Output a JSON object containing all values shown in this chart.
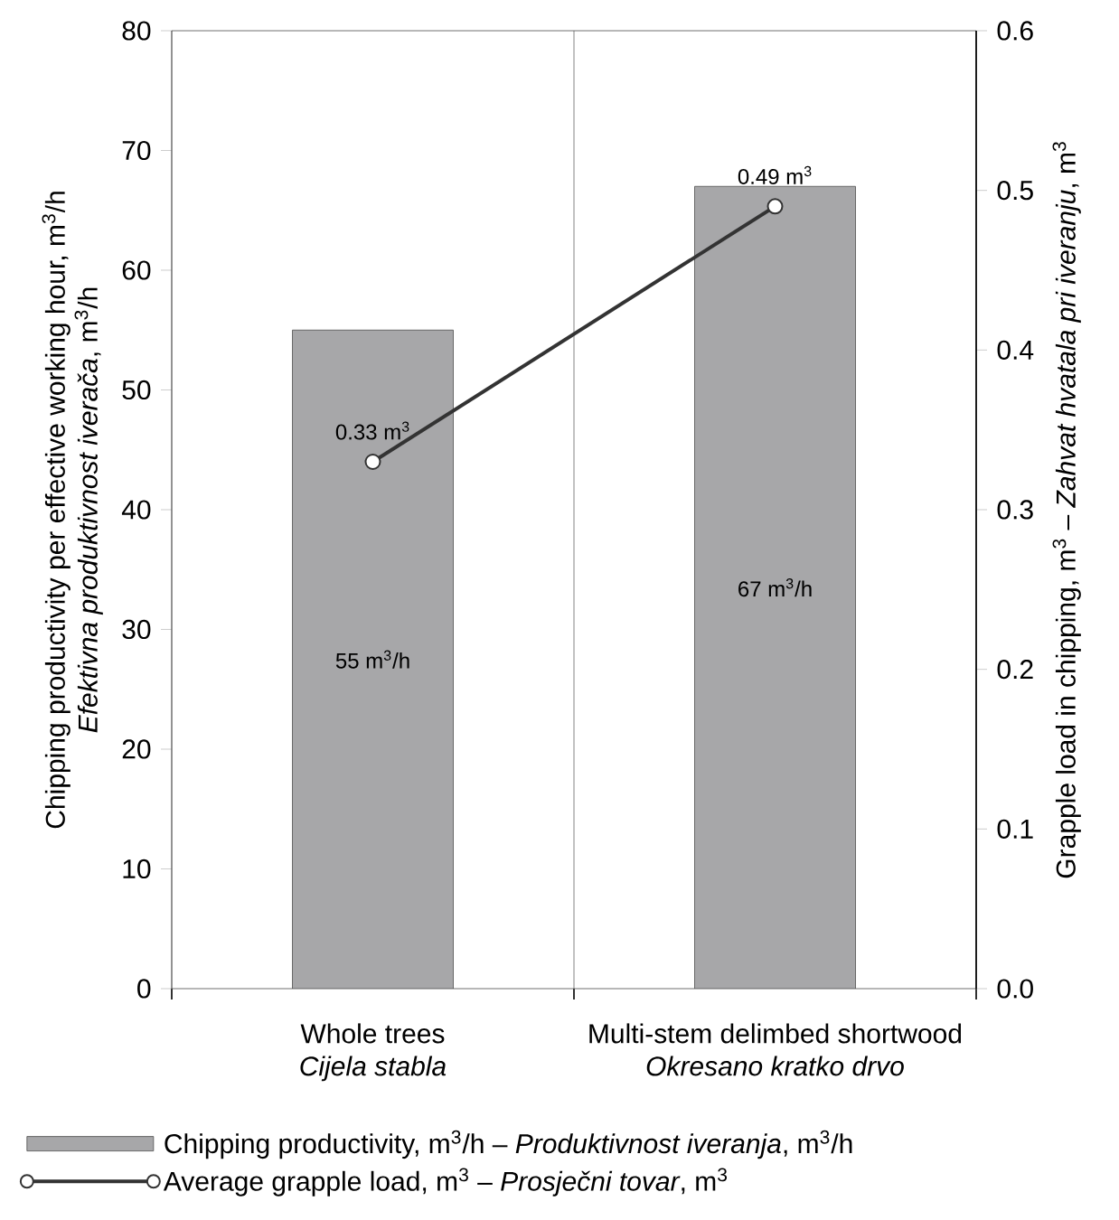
{
  "chart_data": {
    "type": "bar",
    "categories": [
      "Whole trees\n*Cijela stabla*",
      "Multi-stem delimbed shortwood\n*Okresano kratko drvo*"
    ],
    "ylabel": "Chipping productivity per effective working hour, m$^{3}$/h\n*Efektivna produktivnost iverača*, m$^{3}$/h",
    "y2label": "Grapple load in chipping, m$^{3}$ – *Zahvat hvatala pri iveranju*, m$^{3}$",
    "ylim": [
      0,
      80
    ],
    "yticks": [
      0,
      10,
      20,
      30,
      40,
      50,
      60,
      70,
      80
    ],
    "y2lim": [
      0,
      0.6
    ],
    "y2ticks": [
      {
        "value": 0,
        "label": "0.0"
      },
      0.1,
      0.2,
      0.3,
      0.4,
      0.5,
      0.6
    ],
    "grid": "x",
    "legend": "bottom",
    "marker": "circle",
    "series": [
      {
        "name": "Chipping productivity, m$^{3}$/h – *Produktivnost iveranja*, m$^{3}$/h",
        "color": "#a7a7a9",
        "values": [
          55,
          67
        ],
        "value_labels": [
          "55 m$^{3}$/h",
          "67 m$^{3}$/h"
        ]
      },
      {
        "type": "line",
        "axis": "y2",
        "name": "Average grapple load, m$^{3}$ – *Prosječni tovar*, m$^{3}$",
        "color": "#333333",
        "values": [
          0.33,
          0.49
        ],
        "value_labels": [
          "0.33 m$^{3}$",
          "0.49 m$^{3}$"
        ]
      }
    ]
  }
}
